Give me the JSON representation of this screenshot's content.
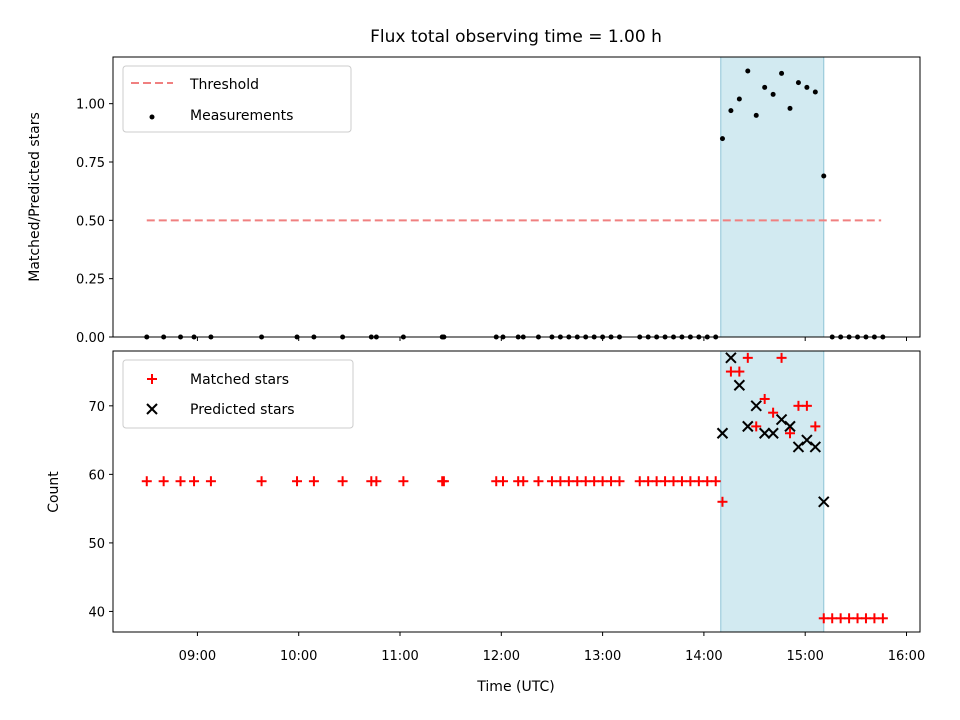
{
  "title": "Flux total observing time = 1.00 h",
  "colors": {
    "threshold": "#f08080",
    "measurement": "#000000",
    "matched": "#ff0000",
    "predicted": "#000000",
    "highlight": "#add8e6"
  },
  "chart_data": [
    {
      "type": "scatter",
      "ylabel": "Matched/Predicted stars",
      "xlabel": "",
      "xlim": [
        "08:10",
        "16:08"
      ],
      "ylim": [
        0,
        1.2
      ],
      "yticks": [
        "0.00",
        "0.25",
        "0.50",
        "0.75",
        "1.00"
      ],
      "highlight_span": [
        "14:10",
        "15:11"
      ],
      "legend_position": "top-left",
      "legend": [
        "Threshold",
        "Measurements"
      ],
      "series": [
        {
          "name": "Threshold",
          "kind": "line",
          "x": [
            "08:30",
            "15:45"
          ],
          "y": [
            0.5,
            0.5
          ]
        },
        {
          "name": "Measurements",
          "kind": "scatter",
          "x": [
            "08:30",
            "08:40",
            "08:50",
            "08:58",
            "09:08",
            "09:38",
            "09:59",
            "10:09",
            "10:26",
            "10:43",
            "10:46",
            "11:02",
            "11:25",
            "11:26",
            "11:57",
            "12:01",
            "12:10",
            "12:13",
            "12:22",
            "12:30",
            "12:35",
            "12:40",
            "12:45",
            "12:50",
            "12:55",
            "13:00",
            "13:05",
            "13:10",
            "13:22",
            "13:27",
            "13:32",
            "13:37",
            "13:42",
            "13:47",
            "13:52",
            "13:57",
            "14:02",
            "14:07",
            "14:11",
            "14:16",
            "14:21",
            "14:26",
            "14:31",
            "14:36",
            "14:41",
            "14:46",
            "14:51",
            "14:56",
            "15:01",
            "15:06",
            "15:11",
            "15:16",
            "15:21",
            "15:26",
            "15:31",
            "15:36",
            "15:41",
            "15:46"
          ],
          "y": [
            0,
            0,
            0,
            0,
            0,
            0,
            0,
            0,
            0,
            0,
            0,
            0,
            0,
            0,
            0,
            0,
            0,
            0,
            0,
            0,
            0,
            0,
            0,
            0,
            0,
            0,
            0,
            0,
            0,
            0,
            0,
            0,
            0,
            0,
            0,
            0,
            0,
            0,
            0.85,
            0.97,
            1.02,
            1.14,
            0.95,
            1.07,
            1.04,
            1.13,
            0.98,
            1.09,
            1.07,
            1.05,
            0.69,
            0,
            0,
            0,
            0,
            0,
            0,
            0
          ]
        }
      ]
    },
    {
      "type": "scatter",
      "ylabel": "Count",
      "xlabel": "Time (UTC)",
      "xlim": [
        "08:10",
        "16:08"
      ],
      "ylim": [
        37,
        78
      ],
      "yticks": [
        "40",
        "50",
        "60",
        "70"
      ],
      "xticks": [
        "09:00",
        "10:00",
        "11:00",
        "12:00",
        "13:00",
        "14:00",
        "15:00",
        "16:00"
      ],
      "highlight_span": [
        "14:10",
        "15:11"
      ],
      "legend_position": "top-left",
      "legend": [
        "Matched stars",
        "Predicted stars"
      ],
      "series": [
        {
          "name": "Matched stars",
          "kind": "plus",
          "x": [
            "08:30",
            "08:40",
            "08:50",
            "08:58",
            "09:08",
            "09:38",
            "09:59",
            "10:09",
            "10:26",
            "10:43",
            "10:46",
            "11:02",
            "11:25",
            "11:26",
            "11:57",
            "12:01",
            "12:10",
            "12:13",
            "12:22",
            "12:30",
            "12:35",
            "12:40",
            "12:45",
            "12:50",
            "12:55",
            "13:00",
            "13:05",
            "13:10",
            "13:22",
            "13:27",
            "13:32",
            "13:37",
            "13:42",
            "13:47",
            "13:52",
            "13:57",
            "14:02",
            "14:07",
            "14:11",
            "14:16",
            "14:21",
            "14:26",
            "14:31",
            "14:36",
            "14:41",
            "14:46",
            "14:51",
            "14:56",
            "15:01",
            "15:06",
            "15:11",
            "15:16",
            "15:21",
            "15:26",
            "15:31",
            "15:36",
            "15:41",
            "15:46"
          ],
          "y": [
            59,
            59,
            59,
            59,
            59,
            59,
            59,
            59,
            59,
            59,
            59,
            59,
            59,
            59,
            59,
            59,
            59,
            59,
            59,
            59,
            59,
            59,
            59,
            59,
            59,
            59,
            59,
            59,
            59,
            59,
            59,
            59,
            59,
            59,
            59,
            59,
            59,
            59,
            56,
            75,
            75,
            77,
            67,
            71,
            69,
            77,
            66,
            70,
            70,
            67,
            39,
            39,
            39,
            39,
            39,
            39,
            39,
            39
          ]
        },
        {
          "name": "Predicted stars",
          "kind": "x",
          "x": [
            "14:11",
            "14:16",
            "14:21",
            "14:26",
            "14:31",
            "14:36",
            "14:41",
            "14:46",
            "14:51",
            "14:56",
            "15:01",
            "15:06",
            "15:11"
          ],
          "y": [
            66,
            77,
            73,
            67,
            70,
            66,
            66,
            68,
            67,
            64,
            65,
            64,
            56
          ]
        }
      ]
    }
  ]
}
